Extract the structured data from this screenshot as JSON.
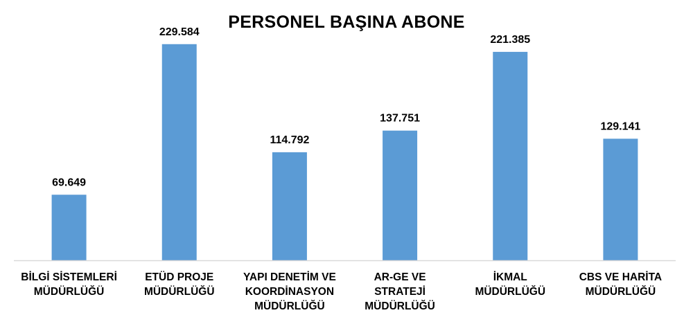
{
  "chart_data": {
    "type": "bar",
    "title": "PERSONEL BAŞINA ABONE",
    "categories": [
      [
        "BİLGİ SİSTEMLERİ",
        "MÜDÜRLÜĞÜ"
      ],
      [
        "ETÜD PROJE",
        "MÜDÜRLÜĞÜ"
      ],
      [
        "YAPI DENETİM VE",
        "KOORDİNASYON",
        "MÜDÜRLÜĞÜ"
      ],
      [
        "AR-GE VE STRATEJİ",
        "MÜDÜRLÜĞÜ"
      ],
      [
        "İKMAL",
        "MÜDÜRLÜĞÜ"
      ],
      [
        "CBS VE HARİTA",
        "MÜDÜRLÜĞÜ"
      ]
    ],
    "values": [
      69.649,
      229.584,
      114.792,
      137.751,
      221.385,
      129.141
    ],
    "value_labels": [
      "69.649",
      "229.584",
      "114.792",
      "137.751",
      "221.385",
      "129.141"
    ],
    "xlabel": "",
    "ylabel": "",
    "ylim": [
      0,
      250
    ],
    "grid": false,
    "legend": "none",
    "bar_color": "#5b9bd5",
    "axis_color": "#d9d9d9"
  }
}
